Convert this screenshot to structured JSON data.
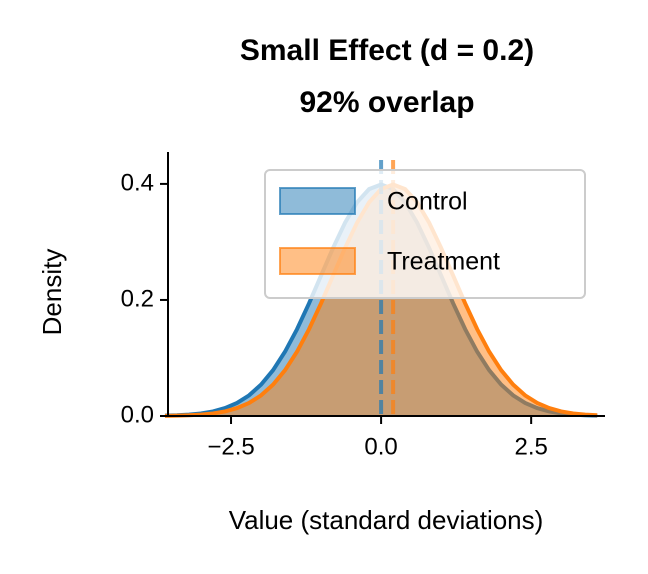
{
  "chart_data": {
    "type": "density",
    "title": "Small Effect (d = 0.2)",
    "subtitle": "92% overlap",
    "x_label": "Value (standard deviations)",
    "y_label": "Density",
    "x": [
      -3.6,
      -3.4,
      -3.2,
      -3.0,
      -2.8,
      -2.6,
      -2.4,
      -2.2,
      -2.0,
      -1.8,
      -1.6,
      -1.4,
      -1.2,
      -1.0,
      -0.8,
      -0.6,
      -0.4,
      -0.2,
      0.0,
      0.2,
      0.4,
      0.6,
      0.8,
      1.0,
      1.2,
      1.4,
      1.6,
      1.8,
      2.0,
      2.2,
      2.4,
      2.6,
      2.8,
      3.0,
      3.2,
      3.4,
      3.6
    ],
    "series": [
      {
        "name": "Control",
        "color": "#1f77b4",
        "mean": 0,
        "values": [
          0.0006,
          0.0012,
          0.0024,
          0.0044,
          0.0079,
          0.0136,
          0.0224,
          0.0355,
          0.054,
          0.079,
          0.1109,
          0.1497,
          0.1942,
          0.242,
          0.2897,
          0.3332,
          0.3683,
          0.391,
          0.3989,
          0.391,
          0.3683,
          0.3332,
          0.2897,
          0.242,
          0.1942,
          0.1497,
          0.1109,
          0.079,
          0.054,
          0.0355,
          0.0224,
          0.0136,
          0.0079,
          0.0044,
          0.0024,
          0.0012,
          0.0006
        ]
      },
      {
        "name": "Treatment",
        "color": "#ff7f0e",
        "mean": 0.2,
        "values": [
          0.0003,
          0.0006,
          0.0012,
          0.0024,
          0.0044,
          0.0079,
          0.0136,
          0.0224,
          0.0355,
          0.054,
          0.079,
          0.1109,
          0.1497,
          0.1942,
          0.242,
          0.2897,
          0.3332,
          0.3683,
          0.391,
          0.3989,
          0.391,
          0.3683,
          0.3332,
          0.2897,
          0.242,
          0.1942,
          0.1497,
          0.1109,
          0.079,
          0.054,
          0.0355,
          0.0224,
          0.0136,
          0.0079,
          0.0044,
          0.0024,
          0.0012
        ]
      }
    ],
    "xlim": [
      -3.55,
      3.73
    ],
    "ylim": [
      0,
      0.455
    ],
    "xticks": [
      {
        "value": -2.5,
        "label": "−2.5"
      },
      {
        "value": 0,
        "label": "0.0"
      },
      2.5
    ],
    "yticks": [
      {
        "value": 0,
        "label": "0.0"
      },
      0.2,
      0.4
    ],
    "legend": "upper right",
    "fill_alpha": 0.5
  }
}
